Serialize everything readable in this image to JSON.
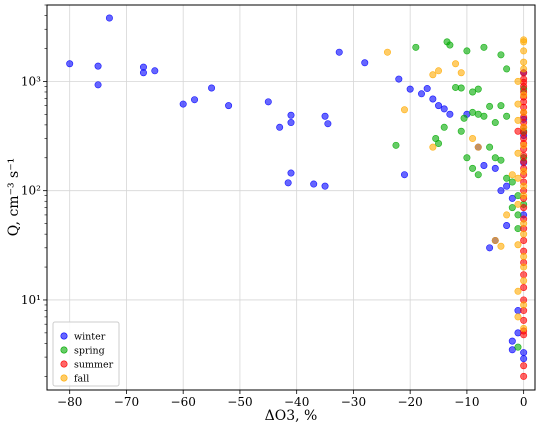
{
  "chart_data": {
    "type": "scatter",
    "xlabel": "ΔO3, %",
    "ylabel": "Q, cm⁻³ s⁻¹",
    "xlim": [
      -84,
      2
    ],
    "ylim": [
      1.5,
      5000
    ],
    "y_scale": "log",
    "grid": true,
    "legend_placement": "lower-left",
    "x_ticks": [
      -80,
      -70,
      -60,
      -50,
      -40,
      -30,
      -20,
      -10,
      0
    ],
    "x_tick_labels": [
      "−80",
      "−70",
      "−60",
      "−50",
      "−40",
      "−30",
      "−20",
      "−10",
      "0"
    ],
    "y_ticks": [
      10,
      100,
      1000
    ],
    "y_tick_labels": [
      "10¹",
      "10²",
      "10³"
    ],
    "series": [
      {
        "name": "winter",
        "color": "#0000ff",
        "points": [
          [
            -73,
            3800
          ],
          [
            -80,
            1450
          ],
          [
            -75,
            1380
          ],
          [
            -75,
            930
          ],
          [
            -67,
            1350
          ],
          [
            -67,
            1200
          ],
          [
            -65,
            1250
          ],
          [
            -60,
            620
          ],
          [
            -58,
            680
          ],
          [
            -55,
            870
          ],
          [
            -52,
            600
          ],
          [
            -45,
            650
          ],
          [
            -43,
            380
          ],
          [
            -41,
            490
          ],
          [
            -41,
            420
          ],
          [
            -41,
            145
          ],
          [
            -41.5,
            118
          ],
          [
            -37,
            115
          ],
          [
            -35,
            480
          ],
          [
            -34.5,
            410
          ],
          [
            -35,
            110
          ],
          [
            -32.5,
            1850
          ],
          [
            -28,
            1480
          ],
          [
            -22,
            1050
          ],
          [
            -20,
            850
          ],
          [
            -18,
            770
          ],
          [
            -17,
            860
          ],
          [
            -16,
            690
          ],
          [
            -15,
            600
          ],
          [
            -14,
            560
          ],
          [
            -13,
            500
          ],
          [
            -21,
            140
          ],
          [
            -10,
            500
          ],
          [
            -8,
            250
          ],
          [
            -7,
            170
          ],
          [
            -5,
            160
          ],
          [
            -4,
            100
          ],
          [
            -3,
            110
          ],
          [
            -2,
            85
          ],
          [
            -6,
            30
          ],
          [
            -5,
            35
          ],
          [
            -3,
            48
          ],
          [
            -2,
            4.2
          ],
          [
            -2,
            3.5
          ],
          [
            0,
            3.3
          ],
          [
            0,
            2.9
          ],
          [
            -1,
            5
          ],
          [
            0,
            1200
          ],
          [
            0,
            450
          ],
          [
            0,
            320
          ],
          [
            0,
            180
          ],
          [
            0,
            60
          ],
          [
            -1,
            8
          ]
        ]
      },
      {
        "name": "spring",
        "color": "#00aa00",
        "points": [
          [
            -19,
            2050
          ],
          [
            -13.5,
            2300
          ],
          [
            -13,
            2150
          ],
          [
            -10,
            1900
          ],
          [
            -8,
            850
          ],
          [
            -4,
            1750
          ],
          [
            -3,
            1300
          ],
          [
            -7,
            2050
          ],
          [
            -12,
            880
          ],
          [
            -11,
            870
          ],
          [
            -9,
            800
          ],
          [
            -22.5,
            260
          ],
          [
            -15.5,
            300
          ],
          [
            -15,
            270
          ],
          [
            -14,
            380
          ],
          [
            -11,
            350
          ],
          [
            -10,
            200
          ],
          [
            -9,
            160
          ],
          [
            -8,
            140
          ],
          [
            -10.5,
            460
          ],
          [
            -9,
            520
          ],
          [
            -8,
            500
          ],
          [
            -7,
            480
          ],
          [
            -6,
            590
          ],
          [
            -5,
            420
          ],
          [
            -4,
            600
          ],
          [
            -3,
            480
          ],
          [
            -6,
            250
          ],
          [
            -5,
            200
          ],
          [
            -4,
            190
          ],
          [
            -3,
            130
          ],
          [
            -2,
            120
          ],
          [
            -1,
            90
          ],
          [
            -2,
            70
          ],
          [
            -1,
            60
          ],
          [
            -1,
            45
          ],
          [
            0,
            850
          ],
          [
            0,
            350
          ],
          [
            0,
            200
          ],
          [
            0,
            75
          ],
          [
            -1,
            3.7
          ]
        ]
      },
      {
        "name": "summer",
        "color": "#ff0000",
        "points": [
          [
            0,
            1200
          ],
          [
            0,
            1050
          ],
          [
            0,
            980
          ],
          [
            0,
            900
          ],
          [
            0,
            800
          ],
          [
            0,
            720
          ],
          [
            0,
            650
          ],
          [
            0,
            580
          ],
          [
            0,
            520
          ],
          [
            0,
            470
          ],
          [
            0,
            420
          ],
          [
            0,
            380
          ],
          [
            0,
            340
          ],
          [
            0,
            300
          ],
          [
            0,
            270
          ],
          [
            0,
            240
          ],
          [
            0,
            210
          ],
          [
            0,
            185
          ],
          [
            0,
            160
          ],
          [
            0,
            140
          ],
          [
            0,
            120
          ],
          [
            0,
            100
          ],
          [
            0,
            85
          ],
          [
            0,
            70
          ],
          [
            0,
            55
          ],
          [
            0,
            45
          ],
          [
            0,
            35
          ],
          [
            0,
            28
          ],
          [
            0,
            22
          ],
          [
            0,
            17
          ],
          [
            0,
            13
          ],
          [
            0,
            10
          ],
          [
            0,
            8
          ],
          [
            0,
            6.5
          ],
          [
            0,
            5.2
          ],
          [
            0,
            4.8
          ],
          [
            0,
            2.5
          ],
          [
            0,
            2
          ],
          [
            -1,
            350
          ]
        ]
      },
      {
        "name": "fall",
        "color": "#ffaa00",
        "points": [
          [
            -24,
            1850
          ],
          [
            -16,
            1150
          ],
          [
            -15,
            1250
          ],
          [
            -12,
            1450
          ],
          [
            -11,
            1200
          ],
          [
            -21,
            550
          ],
          [
            -16,
            250
          ],
          [
            -9,
            300
          ],
          [
            -8,
            250
          ],
          [
            -5,
            35
          ],
          [
            -4,
            31
          ],
          [
            0,
            2400
          ],
          [
            0,
            2300
          ],
          [
            0,
            1900
          ],
          [
            0,
            1500
          ],
          [
            0,
            1300
          ],
          [
            -1,
            1000
          ],
          [
            0,
            750
          ],
          [
            -1,
            620
          ],
          [
            0,
            520
          ],
          [
            -1,
            440
          ],
          [
            0,
            380
          ],
          [
            0,
            260
          ],
          [
            -1,
            220
          ],
          [
            0,
            150
          ],
          [
            -1,
            130
          ],
          [
            0,
            110
          ],
          [
            0,
            90
          ],
          [
            -1,
            75
          ],
          [
            0,
            50
          ],
          [
            0,
            40
          ],
          [
            -1,
            32
          ],
          [
            0,
            25
          ],
          [
            0,
            20
          ],
          [
            0,
            15
          ],
          [
            -1,
            12
          ],
          [
            0,
            9
          ],
          [
            -1,
            7
          ],
          [
            0,
            5.5
          ],
          [
            -2,
            140
          ],
          [
            -3,
            60
          ]
        ]
      }
    ]
  }
}
